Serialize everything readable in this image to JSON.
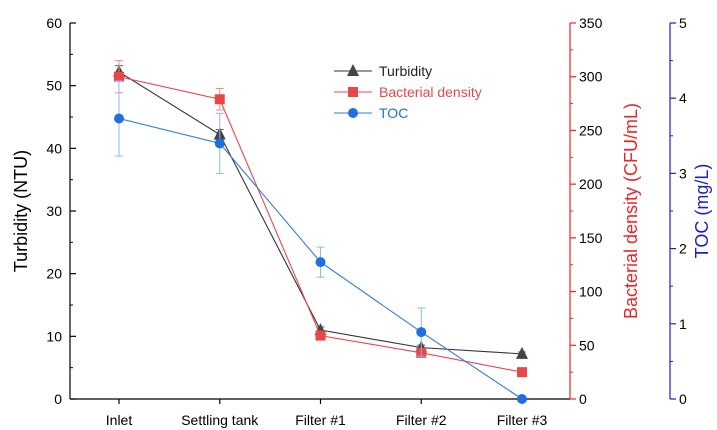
{
  "chart_data": {
    "type": "line",
    "categories": [
      "Inlet",
      "Settling tank",
      "Filter #1",
      "Filter #2",
      "Filter #3"
    ],
    "axes": {
      "left": {
        "label": "Turbidity (NTU)",
        "min": 0,
        "max": 60,
        "ticks": [
          0,
          10,
          20,
          30,
          40,
          50,
          60
        ],
        "color": "#000000"
      },
      "right1": {
        "label": "Bacterial density (CFU/mL)",
        "min": 0,
        "max": 350,
        "ticks": [
          0,
          50,
          100,
          150,
          200,
          250,
          300,
          350
        ],
        "color": "#e8262a"
      },
      "right2": {
        "label": "TOC (mg/L)",
        "min": 0,
        "max": 5,
        "ticks": [
          0,
          1,
          2,
          3,
          4,
          5
        ],
        "color": "#1f1fbf"
      }
    },
    "series": [
      {
        "name": "Turbidity",
        "axis": "left",
        "marker": "triangle",
        "color": "#444444",
        "line_color": "#333333",
        "values": [
          52.2,
          42.2,
          11.0,
          8.2,
          7.2
        ],
        "errors": [
          1.0,
          0.8,
          0.5,
          0.4,
          0.3
        ]
      },
      {
        "name": "Bacterial density",
        "axis": "right1",
        "marker": "square",
        "color": "#e8474a",
        "line_color": "#e8474a",
        "values": [
          300,
          279,
          59,
          43,
          25
        ],
        "errors": [
          15,
          10,
          4,
          3,
          2
        ]
      },
      {
        "name": "TOC",
        "axis": "right2",
        "marker": "circle",
        "color": "#1f6fdf",
        "line_color": "#2b7de0",
        "values": [
          3.73,
          3.4,
          1.82,
          0.89,
          0.0
        ],
        "errors": [
          0.5,
          0.4,
          0.2,
          0.32,
          0.0
        ]
      }
    ],
    "legend_position": "top-right",
    "grid": false
  }
}
